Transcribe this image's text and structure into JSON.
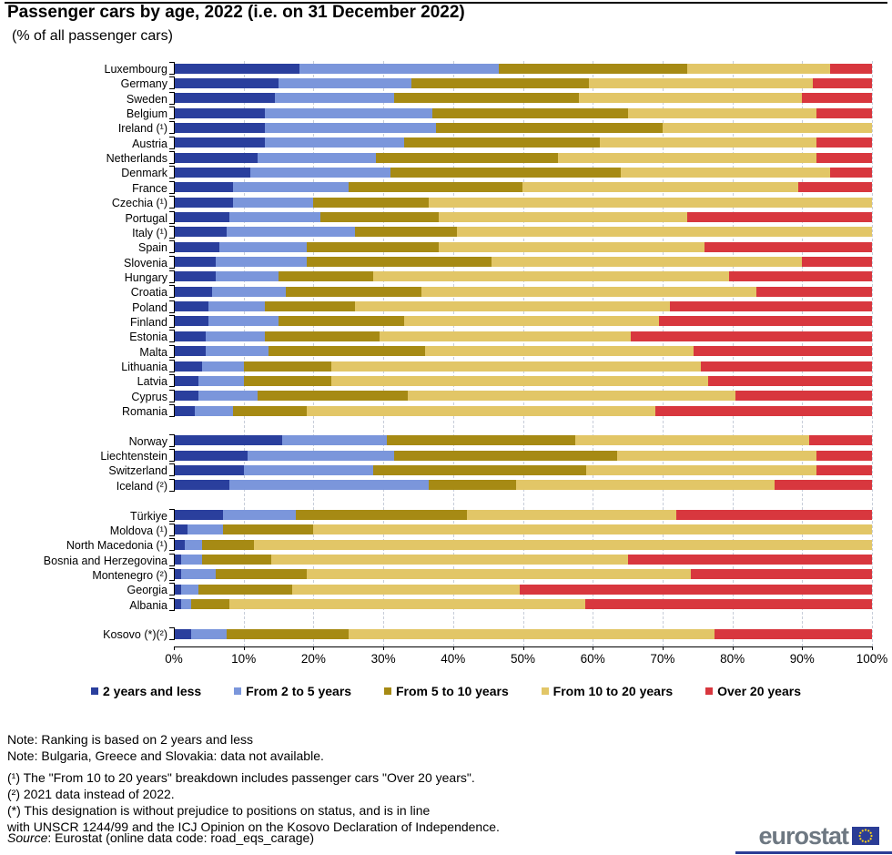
{
  "title": "Passenger cars by age, 2022 (i.e. on 31 December 2022)",
  "subtitle": "(% of all passenger cars)",
  "chart_data": {
    "type": "bar",
    "stacked": true,
    "orientation": "horizontal",
    "unit": "% of all passenger cars",
    "xlim": [
      0,
      100
    ],
    "x_ticks": [
      "0%",
      "10%",
      "20%",
      "30%",
      "40%",
      "50%",
      "60%",
      "70%",
      "80%",
      "90%",
      "100%"
    ],
    "grid": "vertical dashed gridlines every 10%",
    "legend_position": "bottom",
    "series_names": [
      "2 years and less",
      "From 2 to 5 years",
      "From 5 to 10 years",
      "From 10 to 20 years",
      "Over 20 years"
    ],
    "series_colors": [
      "#2a3f9d",
      "#7b96db",
      "#a68a14",
      "#e2c667",
      "#d8373e"
    ],
    "groups": [
      {
        "rows": [
          {
            "label": "Luxembourg",
            "values": [
              18,
              28.5,
              27,
              20.5,
              6
            ]
          },
          {
            "label": "Germany",
            "values": [
              15,
              19,
              25.5,
              32,
              8.5
            ]
          },
          {
            "label": "Sweden",
            "values": [
              14.5,
              17,
              26.5,
              32,
              10
            ]
          },
          {
            "label": "Belgium",
            "values": [
              13,
              24,
              28,
              27,
              8
            ]
          },
          {
            "label": "Ireland (¹)",
            "values": [
              13,
              24.5,
              32.5,
              30,
              0
            ]
          },
          {
            "label": "Austria",
            "values": [
              13,
              20,
              28,
              31,
              8
            ]
          },
          {
            "label": "Netherlands",
            "values": [
              12,
              17,
              26,
              37,
              8
            ]
          },
          {
            "label": "Denmark",
            "values": [
              11,
              20,
              33,
              30,
              6
            ]
          },
          {
            "label": "France",
            "values": [
              8.5,
              16.5,
              25,
              39.5,
              10.5
            ]
          },
          {
            "label": "Czechia (¹)",
            "values": [
              8.5,
              11.5,
              16.5,
              63.5,
              0
            ]
          },
          {
            "label": "Portugal",
            "values": [
              8,
              13,
              17,
              35.5,
              26.5
            ]
          },
          {
            "label": "Italy (¹)",
            "values": [
              7.5,
              18.5,
              14.5,
              59.5,
              0
            ]
          },
          {
            "label": "Spain",
            "values": [
              6.5,
              12.5,
              19,
              38,
              24
            ]
          },
          {
            "label": "Slovenia",
            "values": [
              6,
              13,
              26.5,
              44.5,
              10
            ]
          },
          {
            "label": "Hungary",
            "values": [
              6,
              9,
              13.5,
              51,
              20.5
            ]
          },
          {
            "label": "Croatia",
            "values": [
              5.5,
              10.5,
              19.5,
              48,
              16.5
            ]
          },
          {
            "label": "Poland",
            "values": [
              5,
              8,
              13,
              45,
              29
            ]
          },
          {
            "label": "Finland",
            "values": [
              5,
              10,
              18,
              36.5,
              30.5
            ]
          },
          {
            "label": "Estonia",
            "values": [
              4.5,
              8.5,
              16.5,
              36,
              34.5
            ]
          },
          {
            "label": "Malta",
            "values": [
              4.5,
              9,
              22.5,
              38.5,
              25.5
            ]
          },
          {
            "label": "Lithuania",
            "values": [
              4,
              6,
              12.5,
              53,
              24.5
            ]
          },
          {
            "label": "Latvia",
            "values": [
              3.5,
              6.5,
              12.5,
              54,
              23.5
            ]
          },
          {
            "label": "Cyprus",
            "values": [
              3.5,
              8.5,
              21.5,
              47,
              19.5
            ]
          },
          {
            "label": "Romania",
            "values": [
              3,
              5.5,
              10.5,
              50,
              31
            ]
          }
        ]
      },
      {
        "rows": [
          {
            "label": "Norway",
            "values": [
              15.5,
              15,
              27,
              33.5,
              9
            ]
          },
          {
            "label": "Liechtenstein",
            "values": [
              10.5,
              21,
              32,
              28.5,
              8
            ]
          },
          {
            "label": "Switzerland",
            "values": [
              10,
              18.5,
              30.5,
              33,
              8
            ]
          },
          {
            "label": "Iceland (²)",
            "values": [
              8,
              28.5,
              12.5,
              37,
              14
            ]
          }
        ]
      },
      {
        "rows": [
          {
            "label": "Türkiye",
            "values": [
              7,
              10.5,
              24.5,
              30,
              28
            ]
          },
          {
            "label": "Moldova (¹)",
            "values": [
              2,
              5,
              13,
              80,
              0
            ]
          },
          {
            "label": "North Macedonia (¹)",
            "values": [
              1.5,
              2.5,
              7.5,
              88.5,
              0
            ]
          },
          {
            "label": "Bosnia and Herzegovina",
            "values": [
              1,
              3,
              10,
              51,
              35
            ]
          },
          {
            "label": "Montenegro (²)",
            "values": [
              1,
              5,
              13,
              55,
              26
            ]
          },
          {
            "label": "Georgia",
            "values": [
              1,
              2.5,
              13.5,
              32.5,
              50.5
            ]
          },
          {
            "label": "Albania",
            "values": [
              1,
              1.5,
              5.5,
              51,
              41
            ]
          }
        ]
      },
      {
        "rows": [
          {
            "label": "Kosovo (*)(²)",
            "values": [
              2.5,
              5,
              17.5,
              52.5,
              22.5
            ]
          }
        ]
      }
    ]
  },
  "legend": {
    "items": [
      {
        "label": "2 years and less",
        "color": "#2a3f9d"
      },
      {
        "label": "From 2 to 5 years",
        "color": "#7b96db"
      },
      {
        "label": "From 5 to 10 years",
        "color": "#a68a14"
      },
      {
        "label": "From 10 to 20 years",
        "color": "#e2c667"
      },
      {
        "label": "Over 20 years",
        "color": "#d8373e"
      }
    ]
  },
  "notes": [
    {
      "text": "Note: Ranking is based on 2 years and less",
      "gap": false
    },
    {
      "text": "Note: Bulgaria, Greece and Slovakia: data not available.",
      "gap": false
    },
    {
      "text": "(¹) The \"From 10 to 20 years\" breakdown includes passenger cars \"Over 20 years\".",
      "gap": true
    },
    {
      "text": "(²) 2021 data instead of 2022.",
      "gap": false
    },
    {
      "text": "(*) This designation is without prejudice to positions on status, and is in line",
      "gap": false
    },
    {
      "text": "with UNSCR 1244/99 and the ICJ Opinion on the Kosovo Declaration of Independence.",
      "gap": false
    }
  ],
  "source": {
    "prefix": "Source",
    "text": ": Eurostat (online data code: road_eqs_carage)"
  },
  "logo": {
    "text": "eurostat",
    "flag_blue": "#2b3d96",
    "star_gold": "#ffd617"
  }
}
